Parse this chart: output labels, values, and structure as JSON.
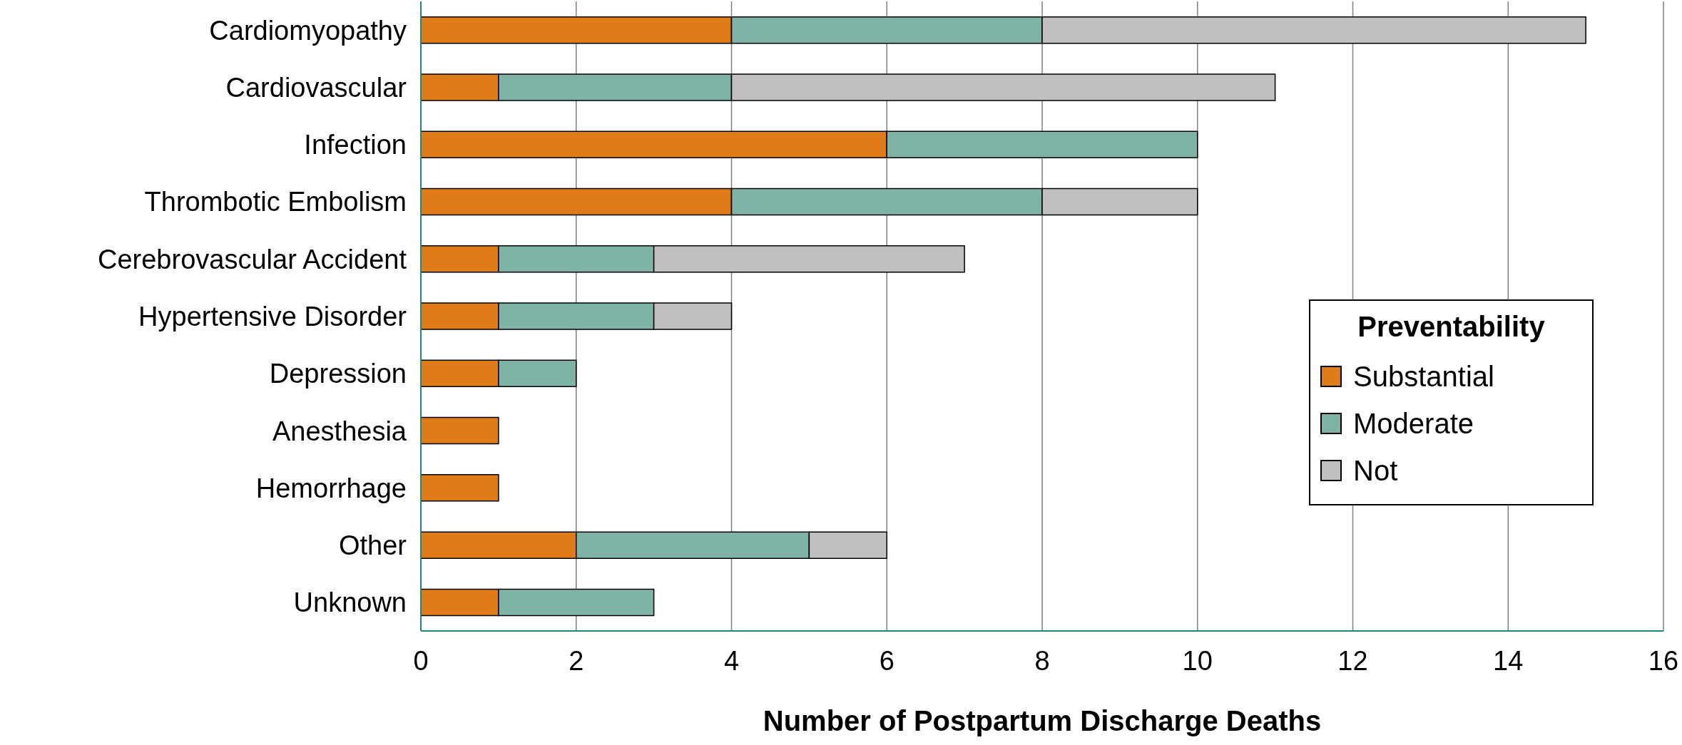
{
  "chart_data": {
    "type": "bar",
    "orientation": "horizontal",
    "stacked": true,
    "categories": [
      "Cardiomyopathy",
      "Cardiovascular",
      "Infection",
      "Thrombotic Embolism",
      "Cerebrovascular Accident",
      "Hypertensive Disorder",
      "Depression",
      "Anesthesia",
      "Hemorrhage",
      "Other",
      "Unknown"
    ],
    "series": [
      {
        "name": "Substantial",
        "color": "#e07b1a",
        "values": [
          4,
          1,
          6,
          4,
          1,
          1,
          1,
          1,
          1,
          2,
          1
        ]
      },
      {
        "name": "Moderate",
        "color": "#7fb3a5",
        "values": [
          4,
          3,
          4,
          4,
          2,
          2,
          1,
          0,
          0,
          3,
          2
        ]
      },
      {
        "name": "Not",
        "color": "#c0c0c0",
        "values": [
          7,
          7,
          0,
          2,
          4,
          1,
          0,
          0,
          0,
          1,
          0
        ]
      }
    ],
    "xlabel": "Number of Postpartum Discharge Deaths",
    "xlim": [
      0,
      16
    ],
    "xticks": [
      0,
      2,
      4,
      6,
      8,
      10,
      12,
      14,
      16
    ],
    "grid": "x",
    "legend": "right",
    "legend_title": "Preventability"
  }
}
